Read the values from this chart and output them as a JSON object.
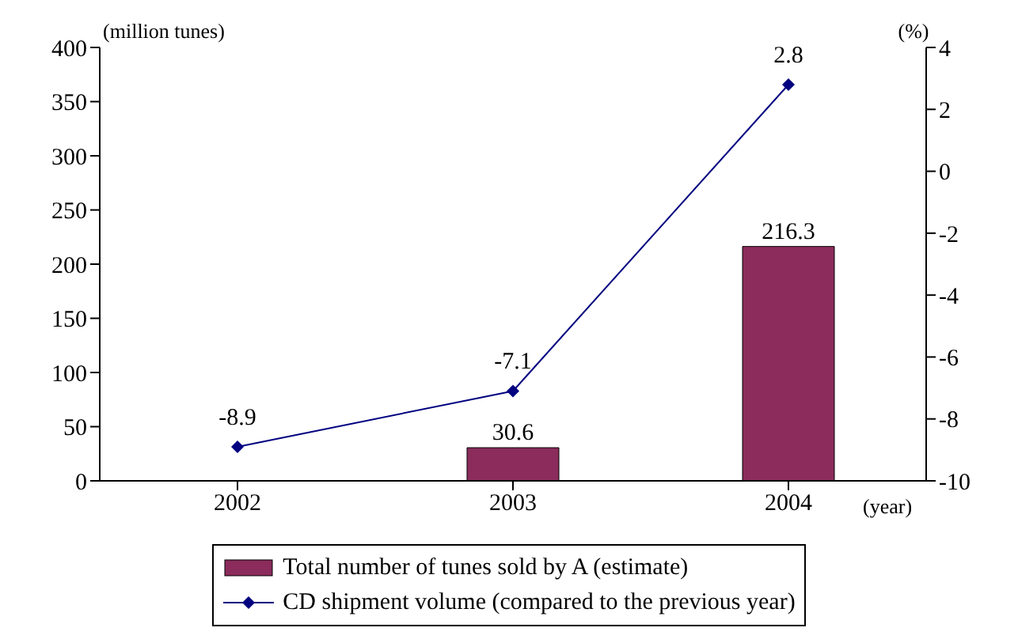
{
  "chart_data": {
    "type": "bar",
    "xlabel": "(year)",
    "ylabel": "(million tunes)",
    "y2label": "(%)",
    "categories": [
      "2002",
      "2003",
      "2004"
    ],
    "series": [
      {
        "name": "Total number of tunes sold by A (estimate)",
        "color": "#8b2c5c",
        "values": [
          null,
          30.6,
          216.3
        ]
      },
      {
        "name": "CD shipment volume (compared to the previous year)",
        "type": "line",
        "axis": "y2",
        "color": "#000080",
        "values": [
          -8.9,
          -7.1,
          2.8
        ]
      }
    ],
    "ylim": [
      0,
      400
    ],
    "yticks": [
      0,
      50,
      100,
      150,
      200,
      250,
      300,
      350,
      400
    ],
    "y2lim": [
      -10,
      4
    ],
    "y2ticks": [
      -10,
      -8,
      -6,
      -4,
      -2,
      0,
      2,
      4
    ],
    "grid": false,
    "legend": "bottom",
    "marker": "diamond",
    "line_style": "solid",
    "data_labels": true
  }
}
